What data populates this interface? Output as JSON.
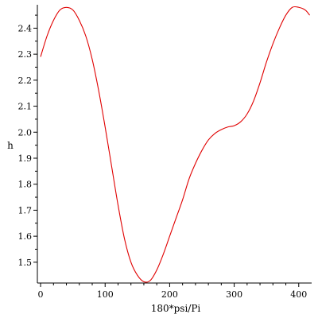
{
  "chart_data": {
    "type": "line",
    "title": "",
    "xlabel": "180*psi/Pi",
    "ylabel": "h",
    "xlim": [
      -5,
      420
    ],
    "ylim": [
      1.42,
      2.49
    ],
    "xticks": [
      0,
      100,
      200,
      300,
      400
    ],
    "yticks": [
      1.5,
      1.6,
      1.7,
      1.8,
      1.9,
      2.0,
      2.1,
      2.2,
      2.3,
      2.4
    ],
    "ytick_labels": [
      "1.5",
      "1.6",
      "1.7",
      "1.8",
      "1.9",
      "2.0",
      "2.1",
      "2.2",
      "2.3",
      "2.4"
    ],
    "grid": false,
    "legend": "none",
    "series": [
      {
        "color": "#e00000",
        "x": [
          0,
          10,
          20,
          30,
          40,
          50,
          60,
          70,
          80,
          90,
          100,
          110,
          120,
          130,
          140,
          150,
          160,
          170,
          180,
          190,
          200,
          210,
          220,
          230,
          240,
          250,
          260,
          270,
          280,
          290,
          300,
          310,
          320,
          330,
          340,
          350,
          360,
          370,
          380,
          390,
          400,
          410,
          417
        ],
        "y": [
          2.29,
          2.37,
          2.43,
          2.47,
          2.48,
          2.47,
          2.43,
          2.37,
          2.28,
          2.16,
          2.02,
          1.87,
          1.72,
          1.59,
          1.5,
          1.45,
          1.425,
          1.43,
          1.47,
          1.53,
          1.6,
          1.67,
          1.74,
          1.82,
          1.88,
          1.93,
          1.97,
          1.995,
          2.01,
          2.02,
          2.025,
          2.04,
          2.07,
          2.12,
          2.19,
          2.27,
          2.34,
          2.4,
          2.45,
          2.48,
          2.48,
          2.47,
          2.45
        ]
      }
    ]
  }
}
